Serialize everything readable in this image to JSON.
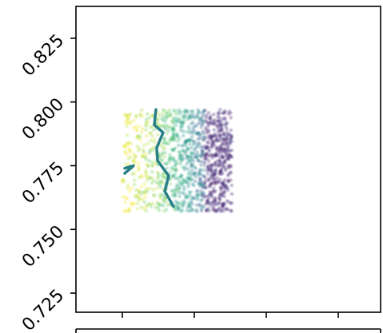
{
  "chart_data": {
    "type": "scatter",
    "title": "",
    "xlabel": "",
    "ylabel": "",
    "ylim": [
      0.7175,
      0.8375
    ],
    "y_ticks": [
      0.725,
      0.75,
      0.775,
      0.8,
      0.825
    ],
    "y_tick_labels": [
      "0.725",
      "0.750",
      "0.775",
      "0.800",
      "0.825"
    ],
    "x_tick_count": 4,
    "x_tick_labels": [],
    "grid": false,
    "colormap": "viridis",
    "point_alpha": 0.35,
    "scatter_region": {
      "y_min": 0.757,
      "y_max": 0.797
    },
    "contour_color": "#2a8087",
    "contour_y_paths": [
      [
        0.797,
        0.791,
        0.788,
        0.782,
        0.777,
        0.771,
        0.765,
        0.759
      ],
      [
        0.774,
        0.775,
        0.772
      ]
    ]
  }
}
